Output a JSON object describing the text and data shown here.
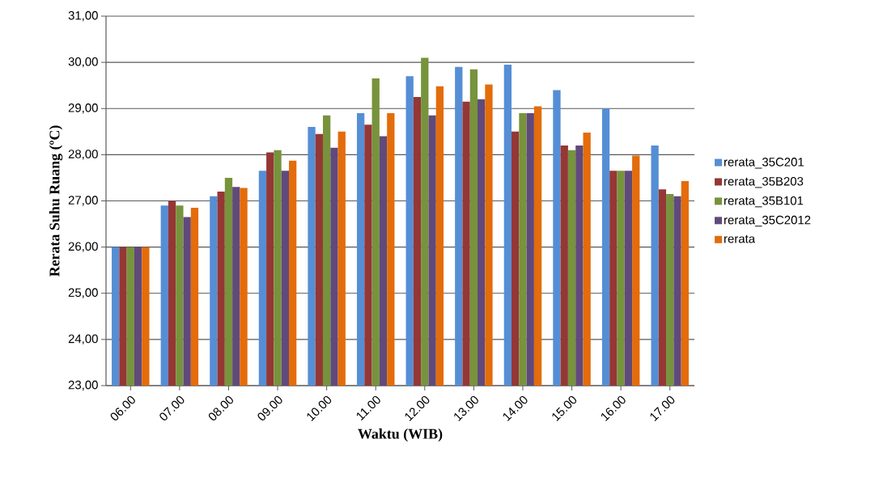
{
  "chart_data": {
    "type": "bar",
    "xlabel": "Waktu (WIB)",
    "ylabel": "Rerata Suhu Ruang (ºC)",
    "categories": [
      "06.00",
      "07.00",
      "08.00",
      "09.00",
      "10.00",
      "11.00",
      "12.00",
      "13.00",
      "14.00",
      "15.00",
      "16.00",
      "17.00"
    ],
    "series": [
      {
        "name": "rerata_35C201",
        "color": "#558ed5",
        "values": [
          26.0,
          26.9,
          27.1,
          27.65,
          28.6,
          28.9,
          29.7,
          29.9,
          29.95,
          29.4,
          29.0,
          28.2
        ]
      },
      {
        "name": "rerata_35B203",
        "color": "#953735",
        "values": [
          26.0,
          27.0,
          27.2,
          28.05,
          28.45,
          28.65,
          29.25,
          29.15,
          28.5,
          28.2,
          27.65,
          27.25
        ]
      },
      {
        "name": "rerata_35B101",
        "color": "#77933c",
        "values": [
          26.0,
          26.9,
          27.5,
          28.1,
          28.85,
          29.65,
          30.1,
          29.85,
          28.9,
          28.1,
          27.65,
          27.15
        ]
      },
      {
        "name": "rerata_35C2012",
        "color": "#604a7b",
        "values": [
          26.0,
          26.65,
          27.3,
          27.65,
          28.15,
          28.4,
          28.85,
          29.2,
          28.9,
          28.2,
          27.65,
          27.1
        ]
      },
      {
        "name": "rerata",
        "color": "#e46c0a",
        "values": [
          26.0,
          26.85,
          27.28,
          27.87,
          28.5,
          28.9,
          29.48,
          29.52,
          29.05,
          28.48,
          27.98,
          27.43
        ]
      }
    ],
    "ylim": [
      23,
      31
    ],
    "yticks": [
      {
        "value": 23,
        "label": "23,00"
      },
      {
        "value": 24,
        "label": "24,00"
      },
      {
        "value": 25,
        "label": "25,00"
      },
      {
        "value": 26,
        "label": "26,00"
      },
      {
        "value": 27,
        "label": "27,00"
      },
      {
        "value": 28,
        "label": "28,00"
      },
      {
        "value": 29,
        "label": "29,00"
      },
      {
        "value": 30,
        "label": "30,00"
      },
      {
        "value": 31,
        "label": "31,00"
      }
    ],
    "grid": "y",
    "legend": "right"
  }
}
